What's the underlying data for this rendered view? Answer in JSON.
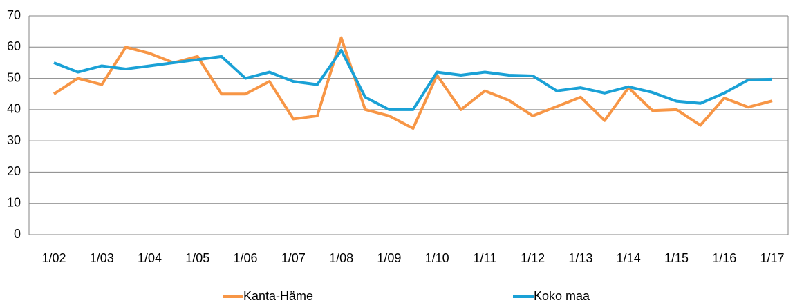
{
  "chart_data": {
    "type": "line",
    "categories": [
      "1/02",
      null,
      "1/03",
      null,
      "1/04",
      null,
      "1/05",
      null,
      "1/06",
      null,
      "1/07",
      null,
      "1/08",
      null,
      "1/09",
      null,
      "1/10",
      null,
      "1/11",
      null,
      "1/12",
      null,
      "1/13",
      null,
      "1/14",
      null,
      "1/15",
      null,
      "1/16",
      null,
      "1/17"
    ],
    "series": [
      {
        "name": "Kanta-Häme",
        "color": "#f79646",
        "values": [
          45,
          50,
          48,
          60,
          58,
          55,
          57,
          45,
          45,
          49,
          37,
          38,
          63,
          40,
          38,
          34,
          51,
          40,
          46,
          43,
          38,
          41,
          44,
          36.5,
          47,
          39.7,
          40,
          35,
          43.7,
          40.8,
          42.8
        ]
      },
      {
        "name": "Koko maa",
        "color": "#1aa1d6",
        "values": [
          55,
          52,
          54,
          53,
          54,
          55,
          56,
          57,
          50,
          52,
          49,
          48,
          59,
          44,
          40,
          40,
          52,
          51,
          52,
          51,
          50.8,
          46,
          47,
          45.3,
          47.3,
          45.5,
          42.7,
          42,
          45.3,
          49.5,
          49.7
        ]
      }
    ],
    "ylim": [
      0,
      70
    ],
    "yticks": [
      0,
      10,
      20,
      30,
      40,
      50,
      60,
      70
    ],
    "grid": true,
    "legend": "bottom"
  }
}
